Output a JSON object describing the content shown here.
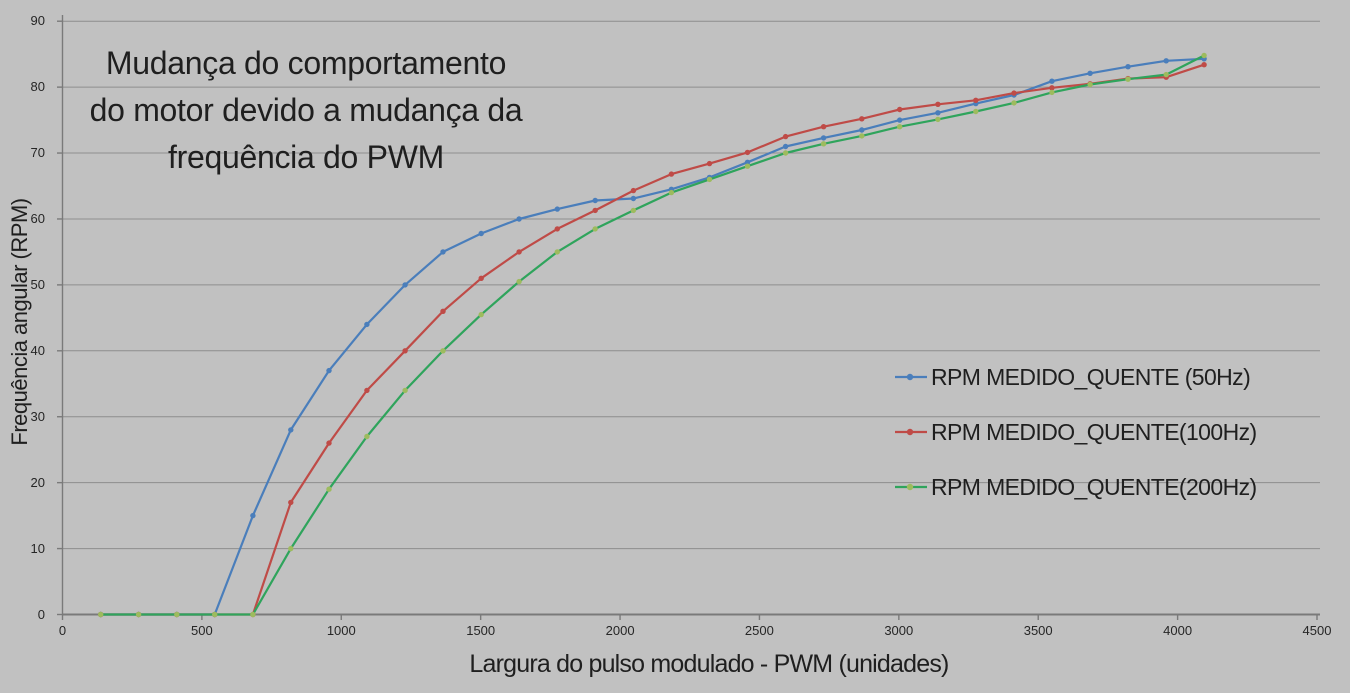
{
  "colors": {
    "background": "#c1c1c1",
    "gridline": "#8e8e8e",
    "axis": "#7a7a7a",
    "tick_text": "#262626",
    "title_text": "#1f1f1f"
  },
  "chart_data": {
    "type": "line",
    "title": "Mudança do comportamento do motor devido a mudança da frequência do PWM",
    "title_lines": [
      "Mudança do comportamento",
      "do motor devido a mudança da",
      "frequência do PWM"
    ],
    "xlabel": "Largura do pulso modulado - PWM (unidades)",
    "ylabel": "Frequência angular (RPM)",
    "xlim": [
      0,
      4500
    ],
    "ylim": [
      0,
      90
    ],
    "x_ticks": [
      0,
      500,
      1000,
      1500,
      2000,
      2500,
      3000,
      3500,
      4000,
      4500
    ],
    "y_ticks": [
      0,
      10,
      20,
      30,
      40,
      50,
      60,
      70,
      80,
      90
    ],
    "grid": "horizontal",
    "legend_position": "middle-right",
    "x": [
      137,
      273,
      410,
      546,
      683,
      819,
      956,
      1092,
      1229,
      1365,
      1502,
      1638,
      1775,
      1911,
      2048,
      2184,
      2321,
      2457,
      2594,
      2730,
      2867,
      3003,
      3140,
      3276,
      3413,
      3549,
      3686,
      3822,
      3959,
      4095
    ],
    "series": [
      {
        "name": "RPM MEDIDO_QUENTE (50Hz)",
        "line_color": "#4a7ebb",
        "marker_color": "#4a7ebb",
        "values": [
          0,
          0,
          0,
          0,
          15,
          28,
          37,
          44,
          50,
          55,
          57.8,
          60,
          61.5,
          62.8,
          63.1,
          64.5,
          66.3,
          68.6,
          71,
          72.3,
          73.5,
          75,
          76.1,
          77.5,
          78.8,
          80.9,
          82.1,
          83.1,
          84,
          84.3
        ]
      },
      {
        "name": "RPM MEDIDO_QUENTE(100Hz)",
        "line_color": "#bf4b47",
        "marker_color": "#bf4b47",
        "values": [
          0,
          0,
          0,
          0,
          0,
          17,
          26,
          34,
          40,
          46,
          51,
          55,
          58.5,
          61.3,
          64.3,
          66.8,
          68.4,
          70.1,
          72.5,
          74,
          75.2,
          76.6,
          77.4,
          78,
          79.1,
          79.9,
          80.5,
          81.3,
          81.5,
          83.4
        ]
      },
      {
        "name": "RPM MEDIDO_QUENTE(200Hz)",
        "line_color": "#2fa45c",
        "marker_color": "#9dbb5e",
        "values": [
          0,
          0,
          0,
          0,
          0,
          10,
          19,
          27,
          34,
          40,
          45.5,
          50.5,
          55,
          58.5,
          61.3,
          64,
          66,
          68,
          70,
          71.4,
          72.6,
          74,
          75.1,
          76.3,
          77.6,
          79.2,
          80.4,
          81.2,
          81.9,
          84.8
        ]
      }
    ]
  }
}
